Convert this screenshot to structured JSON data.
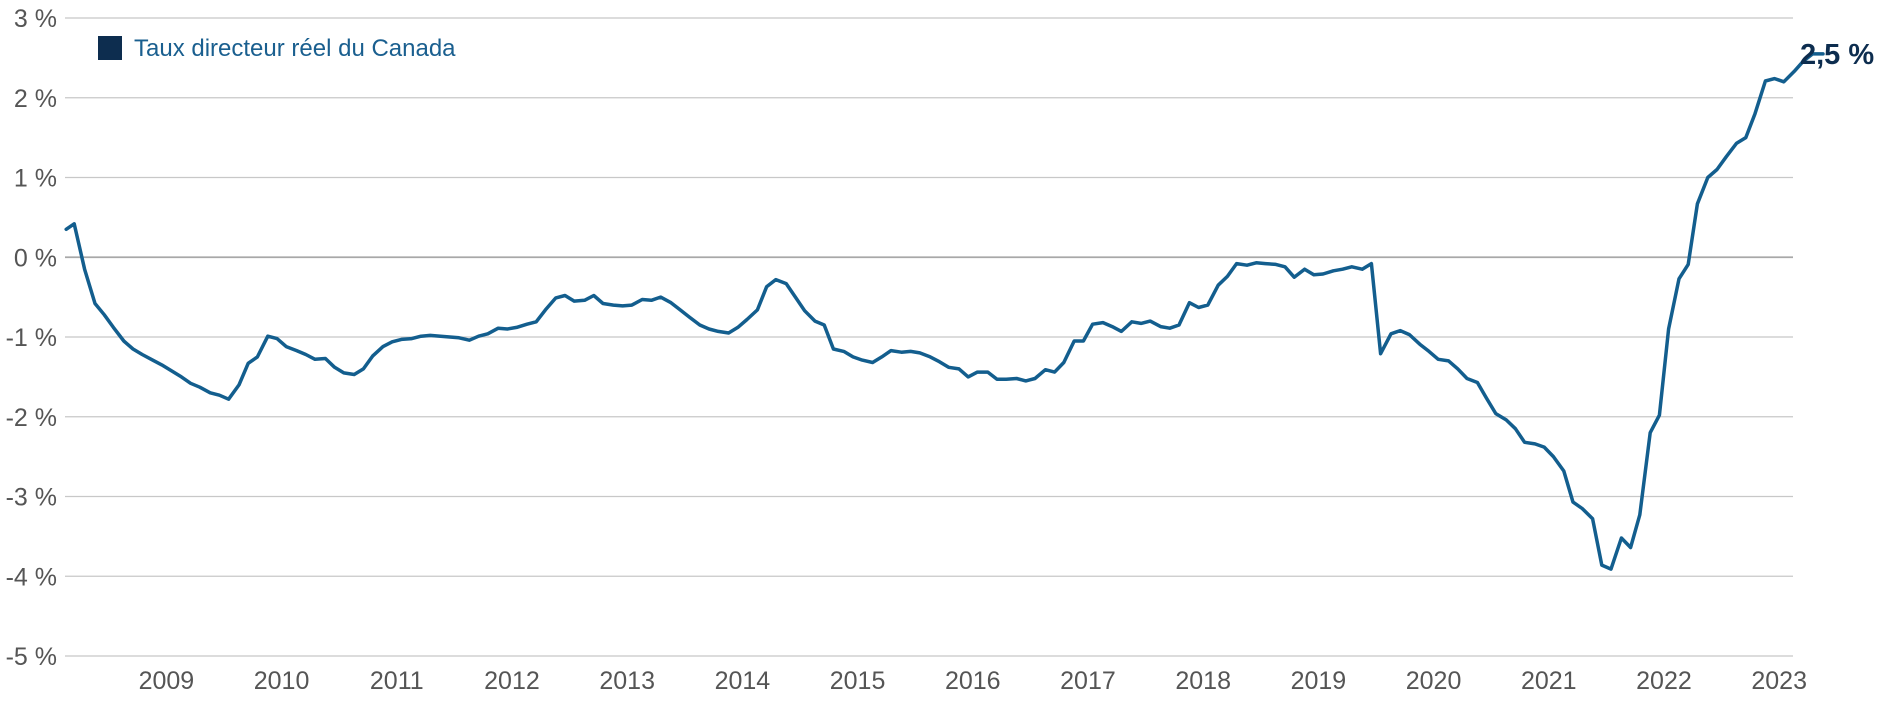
{
  "chart_data": {
    "type": "line",
    "title": "",
    "xlabel": "",
    "ylabel": "",
    "ylim": [
      -5,
      3
    ],
    "xlim": [
      2008.62,
      2023.62
    ],
    "grid": "horizontal",
    "legend_position": "top-left",
    "y_ticks": [
      3,
      2,
      1,
      0,
      -1,
      -2,
      -3,
      -4,
      -5
    ],
    "y_tick_labels": [
      "3 %",
      "2 %",
      "1 %",
      "0 %",
      "-1 %",
      "-2 %",
      "-3 %",
      "-4 %",
      "-5 %"
    ],
    "x_tick_labels": [
      "2009",
      "2010",
      "2011",
      "2012",
      "2013",
      "2014",
      "2015",
      "2016",
      "2017",
      "2018",
      "2019",
      "2020",
      "2021",
      "2022",
      "2023"
    ],
    "end_label": "2,5 %",
    "colors": {
      "line": "#135e8e",
      "legend_swatch": "#0d2d4f",
      "end_label": "#0d2d4f",
      "grid": "#c8c8c8",
      "zero_line": "#a8a8a8"
    },
    "series": [
      {
        "name": "Taux directeur réel du Canada",
        "points": [
          [
            2008.63,
            0.35
          ],
          [
            2008.7,
            0.42
          ],
          [
            2008.79,
            -0.15
          ],
          [
            2008.88,
            -0.58
          ],
          [
            2008.96,
            -0.72
          ],
          [
            2009.04,
            -0.88
          ],
          [
            2009.13,
            -1.05
          ],
          [
            2009.21,
            -1.15
          ],
          [
            2009.29,
            -1.22
          ],
          [
            2009.38,
            -1.29
          ],
          [
            2009.46,
            -1.35
          ],
          [
            2009.54,
            -1.42
          ],
          [
            2009.63,
            -1.5
          ],
          [
            2009.71,
            -1.58
          ],
          [
            2009.79,
            -1.63
          ],
          [
            2009.88,
            -1.7
          ],
          [
            2009.96,
            -1.73
          ],
          [
            2010.04,
            -1.78
          ],
          [
            2010.13,
            -1.6
          ],
          [
            2010.21,
            -1.33
          ],
          [
            2010.29,
            -1.25
          ],
          [
            2010.38,
            -0.99
          ],
          [
            2010.46,
            -1.02
          ],
          [
            2010.54,
            -1.12
          ],
          [
            2010.63,
            -1.17
          ],
          [
            2010.71,
            -1.22
          ],
          [
            2010.79,
            -1.28
          ],
          [
            2010.88,
            -1.27
          ],
          [
            2010.96,
            -1.38
          ],
          [
            2011.04,
            -1.45
          ],
          [
            2011.13,
            -1.47
          ],
          [
            2011.21,
            -1.4
          ],
          [
            2011.29,
            -1.24
          ],
          [
            2011.38,
            -1.12
          ],
          [
            2011.46,
            -1.06
          ],
          [
            2011.54,
            -1.03
          ],
          [
            2011.63,
            -1.02
          ],
          [
            2011.71,
            -0.99
          ],
          [
            2011.79,
            -0.98
          ],
          [
            2011.88,
            -0.99
          ],
          [
            2011.96,
            -1.0
          ],
          [
            2012.04,
            -1.01
          ],
          [
            2012.13,
            -1.04
          ],
          [
            2012.21,
            -0.99
          ],
          [
            2012.29,
            -0.96
          ],
          [
            2012.38,
            -0.89
          ],
          [
            2012.46,
            -0.9
          ],
          [
            2012.54,
            -0.88
          ],
          [
            2012.63,
            -0.84
          ],
          [
            2012.71,
            -0.81
          ],
          [
            2012.79,
            -0.66
          ],
          [
            2012.88,
            -0.51
          ],
          [
            2012.96,
            -0.48
          ],
          [
            2013.04,
            -0.55
          ],
          [
            2013.13,
            -0.54
          ],
          [
            2013.21,
            -0.48
          ],
          [
            2013.29,
            -0.58
          ],
          [
            2013.38,
            -0.6
          ],
          [
            2013.46,
            -0.61
          ],
          [
            2013.54,
            -0.6
          ],
          [
            2013.63,
            -0.53
          ],
          [
            2013.71,
            -0.54
          ],
          [
            2013.79,
            -0.5
          ],
          [
            2013.88,
            -0.57
          ],
          [
            2013.96,
            -0.66
          ],
          [
            2014.04,
            -0.75
          ],
          [
            2014.13,
            -0.85
          ],
          [
            2014.21,
            -0.9
          ],
          [
            2014.29,
            -0.93
          ],
          [
            2014.38,
            -0.95
          ],
          [
            2014.46,
            -0.88
          ],
          [
            2014.54,
            -0.78
          ],
          [
            2014.63,
            -0.66
          ],
          [
            2014.71,
            -0.37
          ],
          [
            2014.79,
            -0.28
          ],
          [
            2014.88,
            -0.33
          ],
          [
            2014.96,
            -0.5
          ],
          [
            2015.04,
            -0.67
          ],
          [
            2015.13,
            -0.8
          ],
          [
            2015.21,
            -0.85
          ],
          [
            2015.29,
            -1.15
          ],
          [
            2015.38,
            -1.18
          ],
          [
            2015.46,
            -1.25
          ],
          [
            2015.54,
            -1.29
          ],
          [
            2015.63,
            -1.32
          ],
          [
            2015.71,
            -1.25
          ],
          [
            2015.79,
            -1.17
          ],
          [
            2015.88,
            -1.19
          ],
          [
            2015.96,
            -1.18
          ],
          [
            2016.04,
            -1.2
          ],
          [
            2016.13,
            -1.25
          ],
          [
            2016.21,
            -1.31
          ],
          [
            2016.29,
            -1.38
          ],
          [
            2016.38,
            -1.4
          ],
          [
            2016.46,
            -1.5
          ],
          [
            2016.54,
            -1.44
          ],
          [
            2016.63,
            -1.44
          ],
          [
            2016.71,
            -1.53
          ],
          [
            2016.79,
            -1.53
          ],
          [
            2016.88,
            -1.52
          ],
          [
            2016.96,
            -1.55
          ],
          [
            2017.04,
            -1.52
          ],
          [
            2017.13,
            -1.41
          ],
          [
            2017.21,
            -1.44
          ],
          [
            2017.29,
            -1.32
          ],
          [
            2017.38,
            -1.05
          ],
          [
            2017.46,
            -1.05
          ],
          [
            2017.54,
            -0.84
          ],
          [
            2017.63,
            -0.82
          ],
          [
            2017.71,
            -0.87
          ],
          [
            2017.79,
            -0.93
          ],
          [
            2017.88,
            -0.81
          ],
          [
            2017.96,
            -0.83
          ],
          [
            2018.04,
            -0.8
          ],
          [
            2018.13,
            -0.87
          ],
          [
            2018.21,
            -0.89
          ],
          [
            2018.29,
            -0.85
          ],
          [
            2018.38,
            -0.57
          ],
          [
            2018.46,
            -0.63
          ],
          [
            2018.54,
            -0.6
          ],
          [
            2018.63,
            -0.35
          ],
          [
            2018.71,
            -0.24
          ],
          [
            2018.79,
            -0.08
          ],
          [
            2018.88,
            -0.1
          ],
          [
            2018.96,
            -0.07
          ],
          [
            2019.04,
            -0.08
          ],
          [
            2019.13,
            -0.09
          ],
          [
            2019.21,
            -0.12
          ],
          [
            2019.29,
            -0.25
          ],
          [
            2019.38,
            -0.15
          ],
          [
            2019.46,
            -0.22
          ],
          [
            2019.54,
            -0.21
          ],
          [
            2019.63,
            -0.17
          ],
          [
            2019.71,
            -0.15
          ],
          [
            2019.79,
            -0.12
          ],
          [
            2019.88,
            -0.15
          ],
          [
            2019.96,
            -0.08
          ],
          [
            2020.04,
            -1.21
          ],
          [
            2020.13,
            -0.96
          ],
          [
            2020.21,
            -0.92
          ],
          [
            2020.29,
            -0.97
          ],
          [
            2020.38,
            -1.09
          ],
          [
            2020.46,
            -1.18
          ],
          [
            2020.54,
            -1.28
          ],
          [
            2020.63,
            -1.3
          ],
          [
            2020.71,
            -1.4
          ],
          [
            2020.79,
            -1.52
          ],
          [
            2020.88,
            -1.57
          ],
          [
            2020.96,
            -1.77
          ],
          [
            2021.04,
            -1.96
          ],
          [
            2021.13,
            -2.04
          ],
          [
            2021.21,
            -2.15
          ],
          [
            2021.29,
            -2.32
          ],
          [
            2021.38,
            -2.34
          ],
          [
            2021.46,
            -2.38
          ],
          [
            2021.54,
            -2.5
          ],
          [
            2021.63,
            -2.68
          ],
          [
            2021.71,
            -3.07
          ],
          [
            2021.79,
            -3.15
          ],
          [
            2021.88,
            -3.28
          ],
          [
            2021.96,
            -3.86
          ],
          [
            2022.04,
            -3.91
          ],
          [
            2022.13,
            -3.52
          ],
          [
            2022.21,
            -3.64
          ],
          [
            2022.29,
            -3.23
          ],
          [
            2022.38,
            -2.2
          ],
          [
            2022.46,
            -1.98
          ],
          [
            2022.54,
            -0.9
          ],
          [
            2022.63,
            -0.27
          ],
          [
            2022.71,
            -0.09
          ],
          [
            2022.79,
            0.67
          ],
          [
            2022.88,
            1.0
          ],
          [
            2022.96,
            1.1
          ],
          [
            2023.04,
            1.26
          ],
          [
            2023.13,
            1.43
          ],
          [
            2023.21,
            1.5
          ],
          [
            2023.29,
            1.8
          ],
          [
            2023.38,
            2.21
          ],
          [
            2023.46,
            2.24
          ],
          [
            2023.54,
            2.2
          ],
          [
            2023.63,
            2.33
          ],
          [
            2023.71,
            2.46
          ],
          [
            2023.79,
            2.55
          ],
          [
            2023.88,
            2.55
          ]
        ]
      }
    ]
  }
}
